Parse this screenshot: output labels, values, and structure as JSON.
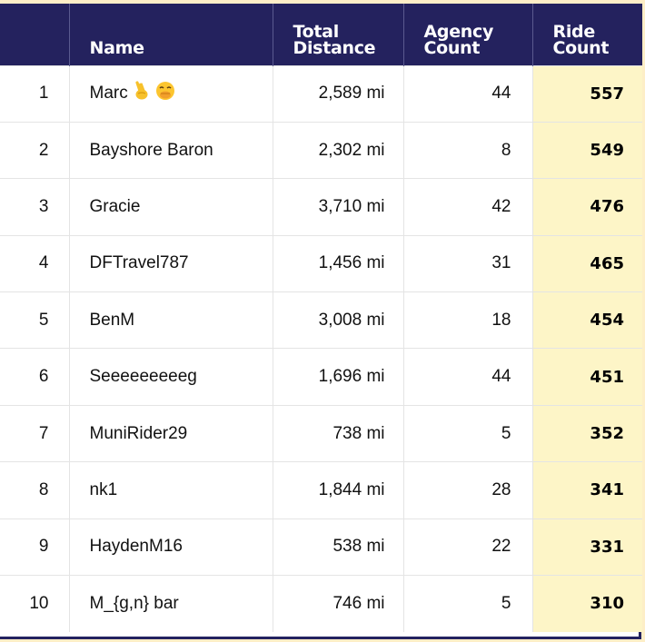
{
  "table": {
    "headers": {
      "rank": "",
      "name": "Name",
      "distance": "Total Distance",
      "agency": "Agency Count",
      "ride": "Ride Count"
    },
    "rows": [
      {
        "rank": "1",
        "name": "Marc",
        "distance": "2,589 mi",
        "agency": "44",
        "ride": "557",
        "icons": [
          "victory-hand-icon",
          "face-with-hand-over-mouth-icon"
        ]
      },
      {
        "rank": "2",
        "name": "Bayshore Baron",
        "distance": "2,302 mi",
        "agency": "8",
        "ride": "549"
      },
      {
        "rank": "3",
        "name": "Gracie",
        "distance": "3,710 mi",
        "agency": "42",
        "ride": "476"
      },
      {
        "rank": "4",
        "name": "DFTravel787",
        "distance": "1,456 mi",
        "agency": "31",
        "ride": "465"
      },
      {
        "rank": "5",
        "name": "BenM",
        "distance": "3,008 mi",
        "agency": "18",
        "ride": "454"
      },
      {
        "rank": "6",
        "name": "Seeeeeeeeeg",
        "distance": "1,696 mi",
        "agency": "44",
        "ride": "451"
      },
      {
        "rank": "7",
        "name": "MuniRider29",
        "distance": "738 mi",
        "agency": "5",
        "ride": "352"
      },
      {
        "rank": "8",
        "name": "nk1",
        "distance": "1,844 mi",
        "agency": "28",
        "ride": "341"
      },
      {
        "rank": "9",
        "name": "HaydenM16",
        "distance": "538 mi",
        "agency": "22",
        "ride": "331"
      },
      {
        "rank": "10",
        "name": "M_{g,n} bar",
        "distance": "746 mi",
        "agency": "5",
        "ride": "310"
      }
    ]
  },
  "colors": {
    "header_bg": "#24225e",
    "highlight_col": "#fdf5c7",
    "page_bg": "#fdeec7"
  }
}
